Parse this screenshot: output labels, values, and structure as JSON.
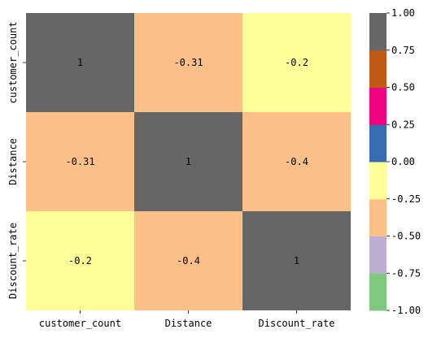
{
  "chart_data": {
    "type": "heatmap",
    "title": "",
    "xlabel": "",
    "ylabel": "",
    "x_categories": [
      "customer_count",
      "Distance",
      "Discount_rate"
    ],
    "y_categories": [
      "customer_count",
      "Distance",
      "Discount_rate"
    ],
    "values": [
      [
        1,
        -0.31,
        -0.2
      ],
      [
        -0.31,
        1,
        -0.4
      ],
      [
        -0.2,
        -0.4,
        1
      ]
    ],
    "cell_labels": [
      [
        "1",
        "-0.31",
        "-0.2"
      ],
      [
        "-0.31",
        "1",
        "-0.4"
      ],
      [
        "-0.2",
        "-0.4",
        "1"
      ]
    ],
    "colorbar": {
      "range": [
        -1.0,
        1.0
      ],
      "ticks": [
        "-1.00",
        "-0.75",
        "-0.50",
        "-0.25",
        "0.00",
        "0.25",
        "0.50",
        "0.75",
        "1.00"
      ],
      "colors": [
        "#7fc97f",
        "#beaed4",
        "#fdc086",
        "#ffff99",
        "#386cb0",
        "#f0027f",
        "#bf5b17",
        "#666666"
      ]
    },
    "colormap": "Accent",
    "grid": false
  }
}
